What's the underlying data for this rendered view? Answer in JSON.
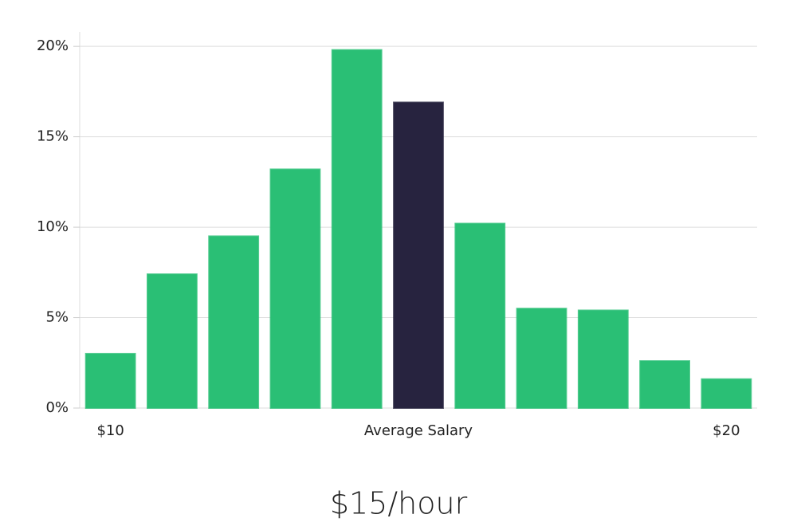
{
  "chart_data": {
    "type": "bar",
    "categories": [
      "$10",
      null,
      null,
      null,
      null,
      "Average Salary",
      null,
      null,
      null,
      null,
      "$20"
    ],
    "values": [
      3.0,
      7.4,
      9.5,
      13.2,
      19.8,
      16.9,
      10.2,
      5.5,
      5.4,
      2.6,
      1.6
    ],
    "colors": [
      "#2abf75",
      "#2abf75",
      "#2abf75",
      "#2abf75",
      "#2abf75",
      "#27233f",
      "#2abf75",
      "#2abf75",
      "#2abf75",
      "#2abf75",
      "#2abf75"
    ],
    "ylim": [
      0,
      20.8
    ],
    "yticks": [
      {
        "value": 0,
        "label": "0%"
      },
      {
        "value": 5,
        "label": "5%"
      },
      {
        "value": 10,
        "label": "10%"
      },
      {
        "value": 15,
        "label": "15%"
      },
      {
        "value": 20,
        "label": "20%"
      }
    ],
    "grid": true,
    "annotation": "$15/hour"
  }
}
